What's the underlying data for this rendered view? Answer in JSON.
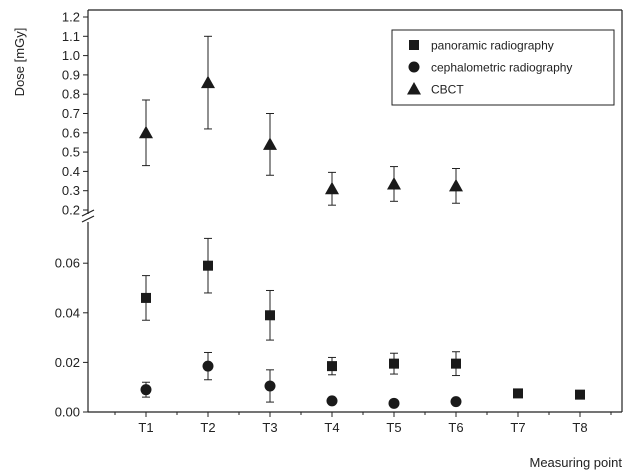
{
  "chart_data": {
    "type": "scatter",
    "xlabel": "Measuring point",
    "ylabel": "Dose  [mGy]",
    "categories": [
      "T1",
      "T2",
      "T3",
      "T4",
      "T5",
      "T6",
      "T7",
      "T8"
    ],
    "y_lower_ticks": [
      "0.00",
      "0.02",
      "0.04",
      "0.06"
    ],
    "y_upper_ticks": [
      "0.2",
      "0.3",
      "0.4",
      "0.5",
      "0.6",
      "0.7",
      "0.8",
      "0.9",
      "1.0",
      "1.1",
      "1.2"
    ],
    "y_lower_range": [
      0.0,
      0.075
    ],
    "y_upper_range": [
      0.2,
      1.2
    ],
    "axis_break": true,
    "grid": false,
    "legend_position": "top-right",
    "series": [
      {
        "name": "panoramic radiography",
        "marker": "square",
        "points": [
          {
            "x": "T1",
            "y": 0.046,
            "err": 0.009
          },
          {
            "x": "T2",
            "y": 0.059,
            "err": 0.011
          },
          {
            "x": "T3",
            "y": 0.039,
            "err": 0.01
          },
          {
            "x": "T4",
            "y": 0.0185,
            "err": 0.0035
          },
          {
            "x": "T5",
            "y": 0.0195,
            "err": 0.0042
          },
          {
            "x": "T6",
            "y": 0.0195,
            "err": 0.0048
          },
          {
            "x": "T7",
            "y": 0.0075,
            "err": 0
          },
          {
            "x": "T8",
            "y": 0.007,
            "err": 0
          }
        ]
      },
      {
        "name": "cephalometric radiography",
        "marker": "circle",
        "points": [
          {
            "x": "T1",
            "y": 0.009,
            "err": 0.003
          },
          {
            "x": "T2",
            "y": 0.0185,
            "err": 0.0055
          },
          {
            "x": "T3",
            "y": 0.0105,
            "err": 0.0065
          },
          {
            "x": "T4",
            "y": 0.0045,
            "err": 0
          },
          {
            "x": "T5",
            "y": 0.0035,
            "err": 0
          },
          {
            "x": "T6",
            "y": 0.0042,
            "err": 0
          }
        ]
      },
      {
        "name": "CBCT",
        "marker": "triangle",
        "points": [
          {
            "x": "T1",
            "y": 0.6,
            "err": 0.17
          },
          {
            "x": "T2",
            "y": 0.86,
            "err": 0.24
          },
          {
            "x": "T3",
            "y": 0.54,
            "err": 0.16
          },
          {
            "x": "T4",
            "y": 0.31,
            "err": 0.085
          },
          {
            "x": "T5",
            "y": 0.335,
            "err": 0.09
          },
          {
            "x": "T6",
            "y": 0.325,
            "err": 0.09
          }
        ]
      }
    ]
  }
}
